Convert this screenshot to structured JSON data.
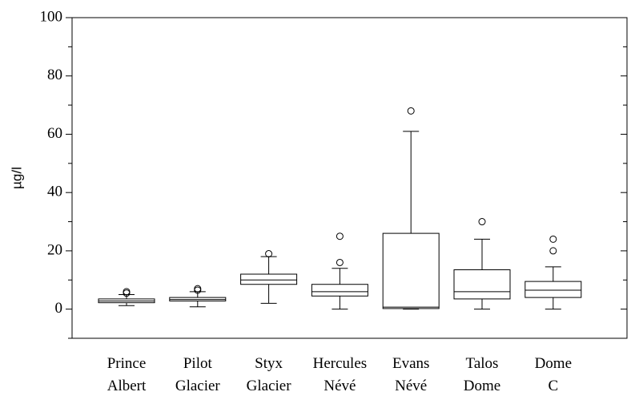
{
  "chart_data": {
    "type": "box",
    "ylabel": "µg/l",
    "categories": [
      [
        "Prince",
        "Albert"
      ],
      [
        "Pilot",
        "Glacier"
      ],
      [
        "Styx",
        "Glacier"
      ],
      [
        "Hercules",
        "Névé"
      ],
      [
        "Evans",
        "Névé"
      ],
      [
        "Talos",
        "Dome"
      ],
      [
        "Dome",
        "C"
      ]
    ],
    "boxes": [
      {
        "min": 1.2,
        "q1": 2.2,
        "median": 2.8,
        "q3": 3.5,
        "max": 5,
        "outliers": [
          5.5,
          6
        ]
      },
      {
        "min": 0.8,
        "q1": 2.8,
        "median": 3.3,
        "q3": 4,
        "max": 6,
        "outliers": [
          6.5,
          7
        ]
      },
      {
        "min": 2,
        "q1": 8.5,
        "median": 10,
        "q3": 12,
        "max": 18,
        "outliers": [
          19
        ]
      },
      {
        "min": 0,
        "q1": 4.5,
        "median": 6,
        "q3": 8.5,
        "max": 14,
        "outliers": [
          16,
          25
        ]
      },
      {
        "min": 0,
        "q1": 0.2,
        "median": 0.7,
        "q3": 26,
        "max": 61,
        "outliers": [
          68
        ]
      },
      {
        "min": 0,
        "q1": 3.5,
        "median": 6,
        "q3": 13.5,
        "max": 24,
        "outliers": [
          30
        ]
      },
      {
        "min": 0,
        "q1": 4,
        "median": 6.5,
        "q3": 9.5,
        "max": 14.5,
        "outliers": [
          20,
          24
        ]
      }
    ],
    "color": "#000000",
    "ylim": [
      -10,
      100
    ],
    "yticks": [
      0,
      20,
      40,
      60,
      80,
      100
    ],
    "minor_yticks": [
      -10,
      10,
      30,
      50,
      70,
      90
    ]
  }
}
